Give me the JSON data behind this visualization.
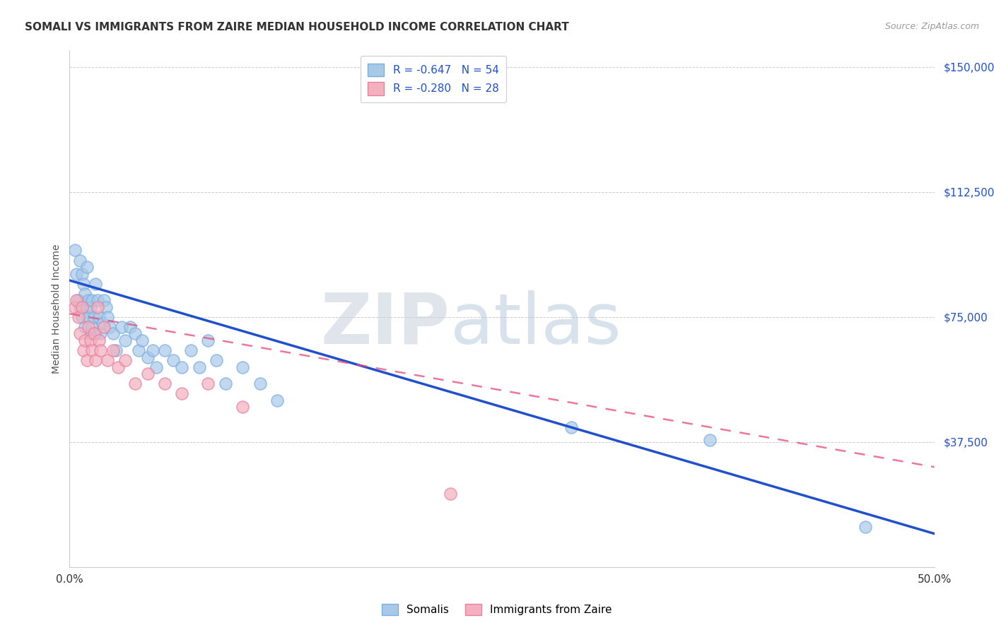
{
  "title": "SOMALI VS IMMIGRANTS FROM ZAIRE MEDIAN HOUSEHOLD INCOME CORRELATION CHART",
  "source": "Source: ZipAtlas.com",
  "ylabel": "Median Household Income",
  "yticks": [
    0,
    37500,
    75000,
    112500,
    150000
  ],
  "ytick_labels": [
    "",
    "$37,500",
    "$75,000",
    "$112,500",
    "$150,000"
  ],
  "xmin": 0.0,
  "xmax": 0.5,
  "ymin": 0,
  "ymax": 155000,
  "legend_label_r1": "R = -0.647   N = 54",
  "legend_label_r2": "R = -0.280   N = 28",
  "legend_label_somalis": "Somalis",
  "legend_label_zaire": "Immigrants from Zaire",
  "watermark_zip": "ZIP",
  "watermark_atlas": "atlas",
  "watermark_color_zip": "#d0dce8",
  "watermark_color_atlas": "#b0c8e0",
  "somali_color": "#a8c8e8",
  "somali_edge_color": "#7aafe0",
  "zaire_color": "#f4b0be",
  "zaire_edge_color": "#e880a0",
  "trend_blue_color": "#2050cc",
  "trend_pink_color": "#e84878",
  "r_value_color": "#2050cc",
  "somali_x": [
    0.003,
    0.004,
    0.005,
    0.006,
    0.006,
    0.007,
    0.007,
    0.008,
    0.009,
    0.009,
    0.01,
    0.01,
    0.011,
    0.011,
    0.012,
    0.012,
    0.013,
    0.013,
    0.014,
    0.015,
    0.015,
    0.016,
    0.017,
    0.018,
    0.019,
    0.02,
    0.021,
    0.022,
    0.023,
    0.025,
    0.027,
    0.03,
    0.032,
    0.035,
    0.038,
    0.04,
    0.042,
    0.045,
    0.048,
    0.05,
    0.055,
    0.06,
    0.065,
    0.07,
    0.075,
    0.08,
    0.085,
    0.09,
    0.1,
    0.11,
    0.12,
    0.29,
    0.37,
    0.46
  ],
  "somali_y": [
    95000,
    88000,
    80000,
    78000,
    92000,
    75000,
    88000,
    85000,
    82000,
    72000,
    78000,
    90000,
    80000,
    75000,
    78000,
    70000,
    72000,
    80000,
    75000,
    70000,
    85000,
    80000,
    75000,
    70000,
    73000,
    80000,
    78000,
    75000,
    72000,
    70000,
    65000,
    72000,
    68000,
    72000,
    70000,
    65000,
    68000,
    63000,
    65000,
    60000,
    65000,
    62000,
    60000,
    65000,
    60000,
    68000,
    62000,
    55000,
    60000,
    55000,
    50000,
    42000,
    38000,
    12000
  ],
  "zaire_x": [
    0.003,
    0.004,
    0.005,
    0.006,
    0.007,
    0.008,
    0.009,
    0.01,
    0.011,
    0.012,
    0.013,
    0.014,
    0.015,
    0.016,
    0.017,
    0.018,
    0.02,
    0.022,
    0.025,
    0.028,
    0.032,
    0.038,
    0.045,
    0.055,
    0.065,
    0.08,
    0.1,
    0.22
  ],
  "zaire_y": [
    78000,
    80000,
    75000,
    70000,
    78000,
    65000,
    68000,
    62000,
    72000,
    68000,
    65000,
    70000,
    62000,
    78000,
    68000,
    65000,
    72000,
    62000,
    65000,
    60000,
    62000,
    55000,
    58000,
    55000,
    52000,
    55000,
    48000,
    22000
  ],
  "trend_somali_x0": 0.0,
  "trend_somali_y0": 86000,
  "trend_somali_x1": 0.5,
  "trend_somali_y1": 10000,
  "trend_zaire_x0": 0.0,
  "trend_zaire_y0": 76000,
  "trend_zaire_x1": 0.5,
  "trend_zaire_y1": 30000
}
